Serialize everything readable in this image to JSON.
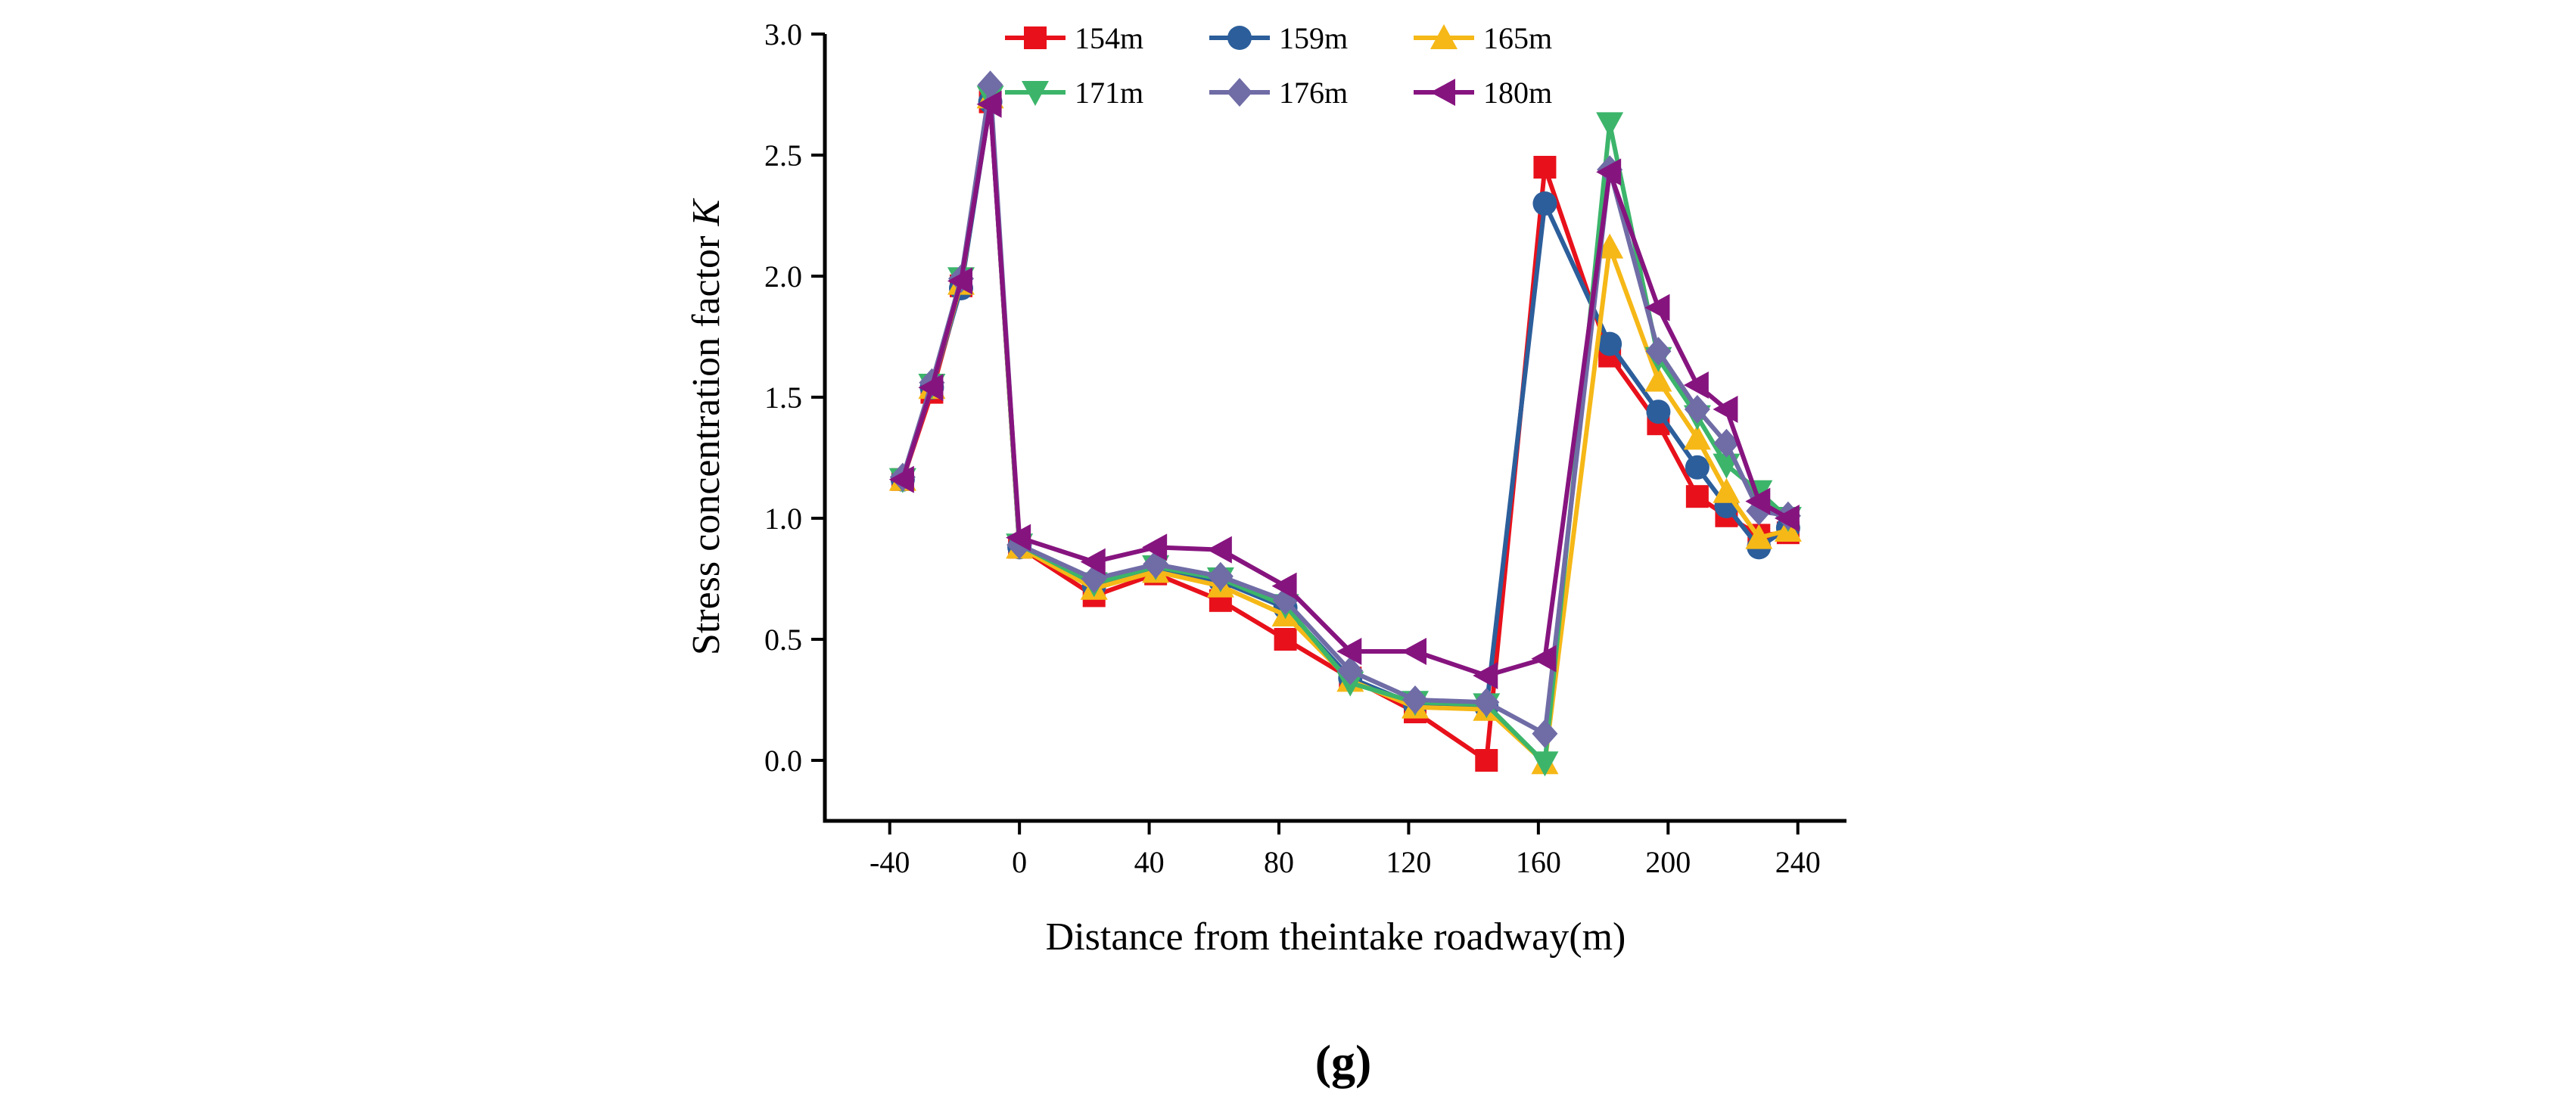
{
  "chart_data": {
    "type": "line",
    "caption": "(g)",
    "xlabel": "Distance from theintake roadway(m)",
    "ylabel_prefix": "Stress concentration factor ",
    "ylabel_symbol": "K",
    "xlim": [
      -60,
      255
    ],
    "ylim": [
      -0.25,
      3.0
    ],
    "xticks": [
      -40,
      0,
      40,
      80,
      120,
      160,
      200,
      240
    ],
    "xtick_labels": [
      "-40",
      "0",
      "40",
      "80",
      "120",
      "160",
      "200",
      "240"
    ],
    "yticks": [
      0.0,
      0.5,
      1.0,
      1.5,
      2.0,
      2.5,
      3.0
    ],
    "ytick_labels": [
      "0.0",
      "0.5",
      "1.0",
      "1.5",
      "2.0",
      "2.5",
      "3.0"
    ],
    "series": [
      {
        "name": "154m",
        "color": "#e8111b",
        "marker": "square",
        "x": [
          -36,
          -27,
          -18,
          -9,
          0,
          23,
          42,
          62,
          82,
          102,
          122,
          144,
          162,
          182,
          197,
          209,
          218,
          228,
          237
        ],
        "y": [
          1.16,
          1.52,
          1.96,
          2.72,
          0.88,
          0.68,
          0.77,
          0.66,
          0.5,
          0.34,
          0.2,
          0.0,
          2.45,
          1.67,
          1.39,
          1.09,
          1.01,
          0.93,
          0.94
        ]
      },
      {
        "name": "159m",
        "color": "#2c5e9b",
        "marker": "circle",
        "x": [
          -36,
          -27,
          -18,
          -9,
          0,
          23,
          42,
          62,
          82,
          102,
          122,
          144,
          162,
          182,
          197,
          209,
          218,
          228,
          237
        ],
        "y": [
          1.16,
          1.54,
          1.95,
          2.72,
          0.88,
          0.72,
          0.79,
          0.74,
          0.63,
          0.34,
          0.23,
          0.22,
          2.3,
          1.72,
          1.44,
          1.21,
          1.05,
          0.88,
          0.96
        ]
      },
      {
        "name": "165m",
        "color": "#f6b817",
        "marker": "triangle-up",
        "x": [
          -36,
          -27,
          -18,
          -9,
          0,
          23,
          42,
          62,
          82,
          102,
          122,
          144,
          162,
          182,
          197,
          209,
          218,
          228,
          237
        ],
        "y": [
          1.16,
          1.54,
          1.97,
          2.74,
          0.88,
          0.71,
          0.78,
          0.72,
          0.6,
          0.33,
          0.22,
          0.21,
          -0.01,
          2.12,
          1.57,
          1.33,
          1.11,
          0.92,
          0.95
        ]
      },
      {
        "name": "171m",
        "color": "#3cb56b",
        "marker": "triangle-down",
        "x": [
          -36,
          -27,
          -18,
          -9,
          0,
          23,
          42,
          62,
          82,
          102,
          122,
          144,
          162,
          182,
          197,
          209,
          218,
          228,
          237
        ],
        "y": [
          1.16,
          1.55,
          1.99,
          2.74,
          0.89,
          0.73,
          0.8,
          0.75,
          0.64,
          0.32,
          0.24,
          0.23,
          -0.01,
          2.63,
          1.66,
          1.42,
          1.22,
          1.11,
          1.0
        ]
      },
      {
        "name": "176m",
        "color": "#6f6ca6",
        "marker": "diamond",
        "x": [
          -36,
          -27,
          -18,
          -9,
          0,
          23,
          42,
          62,
          82,
          102,
          122,
          144,
          162,
          182,
          197,
          209,
          218,
          228,
          237
        ],
        "y": [
          1.17,
          1.56,
          1.99,
          2.79,
          0.89,
          0.75,
          0.81,
          0.76,
          0.66,
          0.37,
          0.25,
          0.24,
          0.11,
          2.44,
          1.69,
          1.45,
          1.31,
          1.03,
          1.01
        ]
      },
      {
        "name": "180m",
        "color": "#86147f",
        "marker": "triangle-left",
        "x": [
          -36,
          -27,
          -18,
          -9,
          0,
          23,
          42,
          62,
          82,
          102,
          122,
          144,
          162,
          182,
          197,
          209,
          218,
          228,
          237
        ],
        "y": [
          1.16,
          1.54,
          1.98,
          2.71,
          0.92,
          0.82,
          0.88,
          0.87,
          0.72,
          0.45,
          0.45,
          0.35,
          0.42,
          2.43,
          1.87,
          1.55,
          1.45,
          1.07,
          1.0
        ]
      }
    ]
  }
}
